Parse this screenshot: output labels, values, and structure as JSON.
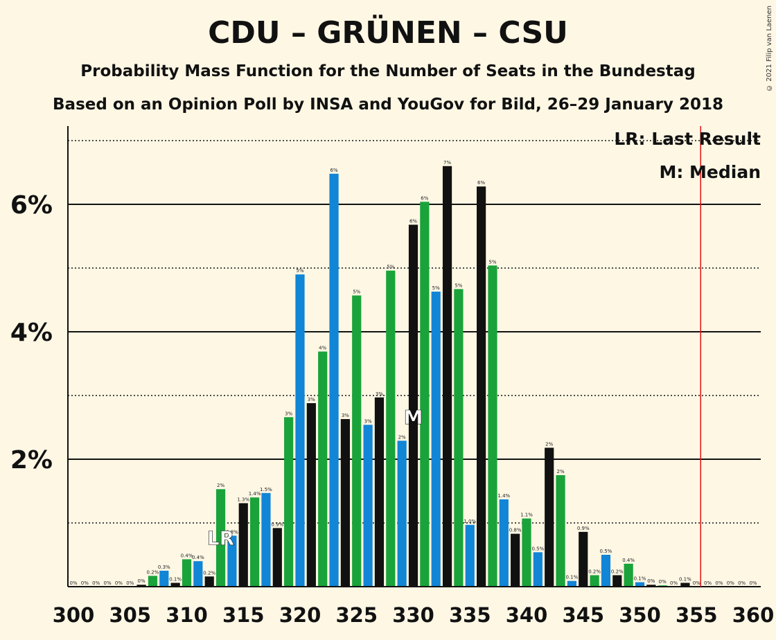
{
  "title": "CDU – GRÜNEN – CSU",
  "subtitle": "Probability Mass Function for the Number of Seats in the Bundestag",
  "subtitle2": "Based on an Opinion Poll by INSA and YouGov for Bild, 26–29 January 2018",
  "copyright": "© 2021 Filip van Laenen",
  "legend": {
    "last_result": "LR: Last Result",
    "median": "M: Median"
  },
  "colors": {
    "green": "#1aa33a",
    "blue": "#1185d6",
    "black": "#111111",
    "majority_line": "#e8100e",
    "background": "#fdf7e4"
  },
  "chart_data": {
    "type": "bar",
    "x": [
      300,
      301,
      302,
      303,
      304,
      305,
      306,
      307,
      308,
      309,
      310,
      311,
      312,
      313,
      314,
      315,
      316,
      317,
      318,
      319,
      320,
      321,
      322,
      323,
      324,
      325,
      326,
      327,
      328,
      329,
      330,
      331,
      332,
      333,
      334,
      335,
      336,
      337,
      338,
      339,
      340,
      341,
      342,
      343,
      344,
      345,
      346,
      347,
      348,
      349,
      350,
      351,
      352,
      353,
      354,
      355,
      356,
      357,
      358,
      359,
      360
    ],
    "values": [
      0,
      0,
      0,
      0,
      0,
      0,
      0.03,
      0.17,
      0.25,
      0.06,
      0.43,
      0.4,
      0.16,
      1.53,
      0.8,
      1.31,
      1.4,
      1.47,
      0.92,
      2.66,
      4.9,
      2.88,
      3.69,
      6.48,
      2.63,
      4.57,
      2.54,
      2.97,
      4.96,
      2.29,
      5.68,
      6.04,
      4.63,
      6.6,
      4.67,
      0.97,
      6.28,
      5.04,
      1.37,
      0.83,
      1.07,
      0.54,
      2.18,
      1.75,
      0.09,
      0.86,
      0.18,
      0.5,
      0.18,
      0.36,
      0.07,
      0.03,
      0.02,
      0,
      0.06,
      0,
      0,
      0,
      0,
      0,
      0
    ],
    "labels": [
      "0%",
      "0%",
      "0%",
      "0%",
      "0%",
      "0%",
      "0%",
      "0.2%",
      "0.3%",
      "0.1%",
      "0.4%",
      "0.4%",
      "0.2%",
      "2%",
      "0.8%",
      "1.3%",
      "1.4%",
      "1.5%",
      "0.9%",
      "3%",
      "5%",
      "3%",
      "4%",
      "6%",
      "3%",
      "5%",
      "3%",
      "3%",
      "5%",
      "2%",
      "6%",
      "6%",
      "5%",
      "7%",
      "5%",
      "1.0%",
      "6%",
      "5%",
      "1.4%",
      "0.8%",
      "1.1%",
      "0.5%",
      "2%",
      "2%",
      "0.1%",
      "0.9%",
      "0.2%",
      "0.5%",
      "0.2%",
      "0.4%",
      "0.1%",
      "0%",
      "0%",
      "0%",
      "0.1%",
      "0%",
      "0%",
      "0%",
      "0%",
      "0%",
      "0%"
    ],
    "bar_colors": [
      "green",
      "blue",
      "black",
      "green",
      "blue",
      "black",
      "black",
      "green",
      "blue",
      "black",
      "green",
      "blue",
      "black",
      "green",
      "blue",
      "black",
      "green",
      "blue",
      "black",
      "green",
      "blue",
      "black",
      "green",
      "blue",
      "black",
      "green",
      "blue",
      "black",
      "green",
      "blue",
      "black",
      "green",
      "blue",
      "black",
      "green",
      "blue",
      "black",
      "green",
      "blue",
      "black",
      "green",
      "blue",
      "black",
      "green",
      "blue",
      "black",
      "green",
      "blue",
      "black",
      "green",
      "blue",
      "black",
      "green",
      "blue",
      "black",
      "green",
      "blue",
      "black",
      "green",
      "blue",
      "black"
    ],
    "y_ticks": [
      2,
      4,
      6
    ],
    "y_tick_labels": [
      "2%",
      "4%",
      "6%"
    ],
    "x_ticks": [
      300,
      305,
      310,
      315,
      320,
      325,
      330,
      335,
      340,
      345,
      350,
      355,
      360
    ],
    "ylim": [
      0,
      7.2
    ],
    "last_result": {
      "seat": 313,
      "label": "LR"
    },
    "median": {
      "seat": 330,
      "label": "M"
    },
    "majority_line": 355
  }
}
